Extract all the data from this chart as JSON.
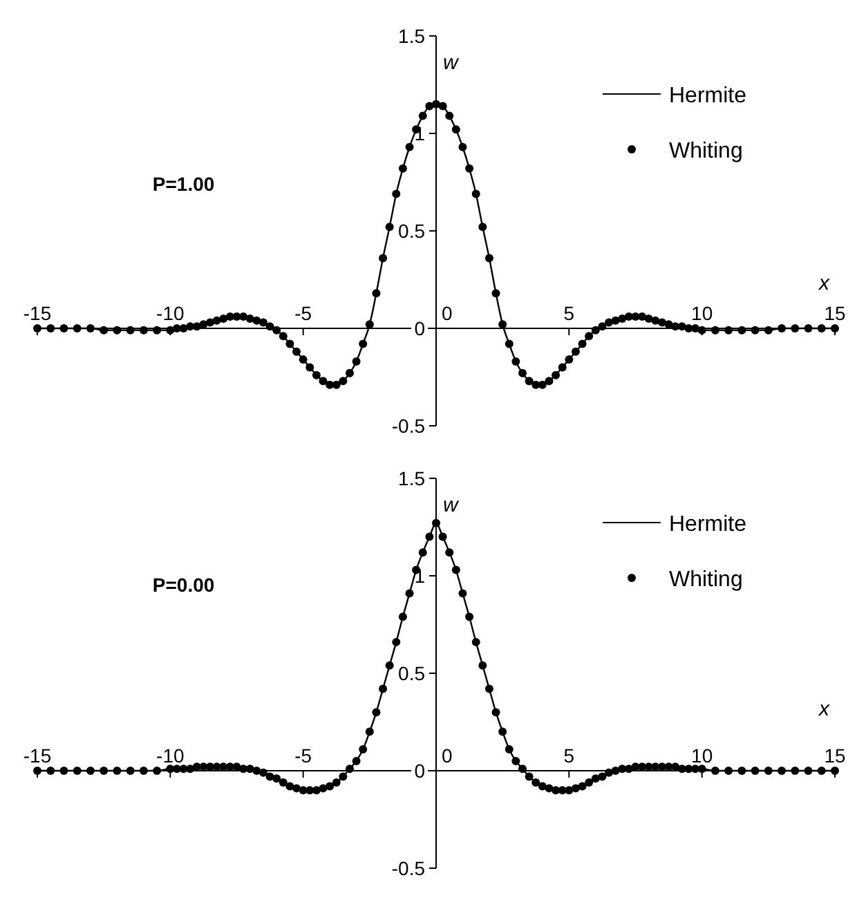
{
  "chart_data": [
    {
      "type": "line",
      "xlabel": "x",
      "ylabel": "w",
      "annotations": [
        "P=1.00"
      ],
      "legend": "top right",
      "xlim": [
        -15,
        15
      ],
      "xticks": [
        -15,
        -10,
        -5,
        0,
        5,
        10,
        15
      ],
      "ylim": [
        -0.5,
        1.5
      ],
      "yticks": [
        -0.5,
        0,
        0.5,
        1,
        1.5
      ],
      "x": [
        -15,
        -14.5,
        -14,
        -13.5,
        -13,
        -12.5,
        -12,
        -11.5,
        -11,
        -10.5,
        -10,
        -9.75,
        -9.5,
        -9.25,
        -9,
        -8.75,
        -8.5,
        -8.25,
        -8,
        -7.75,
        -7.5,
        -7.25,
        -7,
        -6.75,
        -6.5,
        -6.25,
        -6,
        -5.75,
        -5.5,
        -5.25,
        -5,
        -4.75,
        -4.5,
        -4.25,
        -4,
        -3.75,
        -3.5,
        -3.25,
        -3,
        -2.75,
        -2.5,
        -2.25,
        -2,
        -1.75,
        -1.5,
        -1.25,
        -1,
        -0.75,
        -0.5,
        -0.25,
        0,
        0.25,
        0.5,
        0.75,
        1,
        1.25,
        1.5,
        1.75,
        2,
        2.25,
        2.5,
        2.75,
        3,
        3.25,
        3.5,
        3.75,
        4,
        4.25,
        4.5,
        4.75,
        5,
        5.25,
        5.5,
        5.75,
        6,
        6.25,
        6.5,
        6.75,
        7,
        7.25,
        7.5,
        7.75,
        8,
        8.25,
        8.5,
        8.75,
        9,
        9.25,
        9.5,
        9.75,
        10,
        10.5,
        11,
        11.5,
        12,
        12.5,
        13,
        13.5,
        14,
        14.5,
        15
      ],
      "series": [
        {
          "name": "Hermite",
          "type": "line",
          "color": "#000000",
          "line_style": "solid",
          "values": [
            0,
            0,
            0,
            0,
            0,
            -0.01,
            -0.01,
            -0.01,
            -0.01,
            -0.01,
            -0.01,
            0,
            0,
            0.01,
            0.01,
            0.02,
            0.03,
            0.04,
            0.05,
            0.06,
            0.06,
            0.06,
            0.05,
            0.04,
            0.03,
            0.01,
            -0.01,
            -0.04,
            -0.08,
            -0.12,
            -0.16,
            -0.2,
            -0.24,
            -0.27,
            -0.29,
            -0.29,
            -0.27,
            -0.23,
            -0.17,
            -0.08,
            0.02,
            0.18,
            0.36,
            0.52,
            0.69,
            0.82,
            0.93,
            1.02,
            1.09,
            1.14,
            1.15,
            1.14,
            1.09,
            1.02,
            0.93,
            0.82,
            0.69,
            0.52,
            0.36,
            0.18,
            0.02,
            -0.08,
            -0.17,
            -0.23,
            -0.27,
            -0.29,
            -0.29,
            -0.27,
            -0.24,
            -0.2,
            -0.16,
            -0.12,
            -0.08,
            -0.04,
            -0.01,
            0.01,
            0.03,
            0.04,
            0.05,
            0.06,
            0.06,
            0.06,
            0.05,
            0.04,
            0.03,
            0.02,
            0.01,
            0.01,
            0,
            0,
            -0.01,
            -0.01,
            -0.01,
            -0.01,
            -0.01,
            -0.01,
            0,
            0,
            0,
            0,
            0
          ]
        },
        {
          "name": "Whiting",
          "type": "scatter",
          "color": "#000000",
          "marker": "circle",
          "values": [
            0,
            0,
            0,
            0,
            0,
            -0.01,
            -0.01,
            -0.01,
            -0.01,
            -0.01,
            -0.01,
            0,
            0,
            0.01,
            0.01,
            0.02,
            0.03,
            0.04,
            0.05,
            0.06,
            0.06,
            0.06,
            0.05,
            0.04,
            0.03,
            0.01,
            -0.01,
            -0.04,
            -0.08,
            -0.12,
            -0.16,
            -0.2,
            -0.24,
            -0.27,
            -0.29,
            -0.29,
            -0.27,
            -0.23,
            -0.17,
            -0.08,
            0.02,
            0.18,
            0.36,
            0.52,
            0.69,
            0.82,
            0.93,
            1.02,
            1.09,
            1.14,
            1.15,
            1.14,
            1.09,
            1.02,
            0.93,
            0.82,
            0.69,
            0.52,
            0.36,
            0.18,
            0.02,
            -0.08,
            -0.17,
            -0.23,
            -0.27,
            -0.29,
            -0.29,
            -0.27,
            -0.24,
            -0.2,
            -0.16,
            -0.12,
            -0.08,
            -0.04,
            -0.01,
            0.01,
            0.03,
            0.04,
            0.05,
            0.06,
            0.06,
            0.06,
            0.05,
            0.04,
            0.03,
            0.02,
            0.01,
            0.01,
            0,
            0,
            -0.01,
            -0.01,
            -0.01,
            -0.01,
            -0.01,
            -0.01,
            0,
            0,
            0,
            0,
            0
          ]
        }
      ]
    },
    {
      "type": "line",
      "xlabel": "x",
      "ylabel": "w",
      "annotations": [
        "P=0.00"
      ],
      "legend": "top right",
      "xlim": [
        -15,
        15
      ],
      "xticks": [
        -15,
        -10,
        -5,
        0,
        5,
        10,
        15
      ],
      "ylim": [
        -0.5,
        1.5
      ],
      "yticks": [
        -0.5,
        0,
        0.5,
        1,
        1.5
      ],
      "x": [
        -15,
        -14.5,
        -14,
        -13.5,
        -13,
        -12.5,
        -12,
        -11.5,
        -11,
        -10.5,
        -10,
        -9.75,
        -9.5,
        -9.25,
        -9,
        -8.75,
        -8.5,
        -8.25,
        -8,
        -7.75,
        -7.5,
        -7.25,
        -7,
        -6.75,
        -6.5,
        -6.25,
        -6,
        -5.75,
        -5.5,
        -5.25,
        -5,
        -4.75,
        -4.5,
        -4.25,
        -4,
        -3.75,
        -3.5,
        -3.25,
        -3,
        -2.75,
        -2.5,
        -2.25,
        -2,
        -1.75,
        -1.5,
        -1.25,
        -1,
        -0.75,
        -0.5,
        -0.25,
        0,
        0.25,
        0.5,
        0.75,
        1,
        1.25,
        1.5,
        1.75,
        2,
        2.25,
        2.5,
        2.75,
        3,
        3.25,
        3.5,
        3.75,
        4,
        4.25,
        4.5,
        4.75,
        5,
        5.25,
        5.5,
        5.75,
        6,
        6.25,
        6.5,
        6.75,
        7,
        7.25,
        7.5,
        7.75,
        8,
        8.25,
        8.5,
        8.75,
        9,
        9.25,
        9.5,
        9.75,
        10,
        10.5,
        11,
        11.5,
        12,
        12.5,
        13,
        13.5,
        14,
        14.5,
        15
      ],
      "series": [
        {
          "name": "Hermite",
          "type": "line",
          "color": "#000000",
          "line_style": "solid",
          "values": [
            0,
            0,
            0,
            0,
            0,
            0,
            0,
            0,
            0,
            0,
            0.01,
            0.01,
            0.01,
            0.01,
            0.02,
            0.02,
            0.02,
            0.02,
            0.02,
            0.02,
            0.02,
            0.01,
            0.01,
            0,
            -0.01,
            -0.03,
            -0.04,
            -0.06,
            -0.08,
            -0.09,
            -0.1,
            -0.1,
            -0.1,
            -0.09,
            -0.08,
            -0.06,
            -0.03,
            0.01,
            0.05,
            0.11,
            0.2,
            0.3,
            0.42,
            0.54,
            0.66,
            0.79,
            0.91,
            1.03,
            1.12,
            1.2,
            1.27,
            1.2,
            1.12,
            1.03,
            0.91,
            0.79,
            0.66,
            0.54,
            0.42,
            0.3,
            0.2,
            0.11,
            0.05,
            0.01,
            -0.03,
            -0.06,
            -0.08,
            -0.09,
            -0.1,
            -0.1,
            -0.1,
            -0.09,
            -0.08,
            -0.06,
            -0.04,
            -0.03,
            -0.01,
            0,
            0.01,
            0.01,
            0.02,
            0.02,
            0.02,
            0.02,
            0.02,
            0.02,
            0.02,
            0.01,
            0.01,
            0.01,
            0.01,
            0,
            0,
            0,
            0,
            0,
            0,
            0,
            0,
            0,
            0
          ]
        },
        {
          "name": "Whiting",
          "type": "scatter",
          "color": "#000000",
          "marker": "circle",
          "values": [
            0,
            0,
            0,
            0,
            0,
            0,
            0,
            0,
            0,
            0,
            0.01,
            0.01,
            0.01,
            0.01,
            0.02,
            0.02,
            0.02,
            0.02,
            0.02,
            0.02,
            0.02,
            0.01,
            0.01,
            0,
            -0.01,
            -0.03,
            -0.04,
            -0.06,
            -0.08,
            -0.09,
            -0.1,
            -0.1,
            -0.1,
            -0.09,
            -0.08,
            -0.06,
            -0.03,
            0.01,
            0.05,
            0.11,
            0.2,
            0.3,
            0.42,
            0.54,
            0.66,
            0.79,
            0.91,
            1.03,
            1.12,
            1.2,
            1.27,
            1.2,
            1.12,
            1.03,
            0.91,
            0.79,
            0.66,
            0.54,
            0.42,
            0.3,
            0.2,
            0.11,
            0.05,
            0.01,
            -0.03,
            -0.06,
            -0.08,
            -0.09,
            -0.1,
            -0.1,
            -0.1,
            -0.09,
            -0.08,
            -0.06,
            -0.04,
            -0.03,
            -0.01,
            0,
            0.01,
            0.01,
            0.02,
            0.02,
            0.02,
            0.02,
            0.02,
            0.02,
            0.02,
            0.01,
            0.01,
            0.01,
            0.01,
            0,
            0,
            0,
            0,
            0,
            0,
            0,
            0,
            0,
            0
          ]
        }
      ]
    }
  ]
}
